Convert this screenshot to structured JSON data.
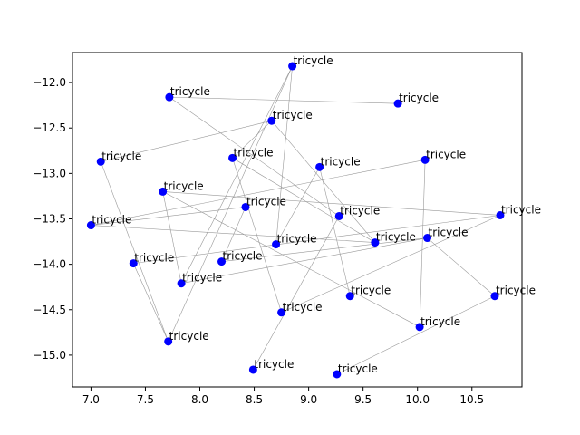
{
  "chart_data": {
    "type": "scatter",
    "title": "",
    "xlabel": "",
    "ylabel": "",
    "xlim": [
      6.83,
      10.96
    ],
    "ylim": [
      -15.35,
      -11.67
    ],
    "xticks": [
      7.0,
      7.5,
      8.0,
      8.5,
      9.0,
      9.5,
      10.0,
      10.5
    ],
    "xtick_labels": [
      "7.0",
      "7.5",
      "8.0",
      "8.5",
      "9.0",
      "9.5",
      "10.0",
      "10.5"
    ],
    "yticks": [
      -12.0,
      -12.5,
      -13.0,
      -13.5,
      -14.0,
      -14.5,
      -15.0
    ],
    "ytick_labels": [
      "−12.0",
      "−12.5",
      "−13.0",
      "−13.5",
      "−14.0",
      "−14.5",
      "−15.0"
    ],
    "grid": false,
    "colors": {
      "point": "#0000ff",
      "edge": "#999999",
      "axis": "#000000"
    },
    "points": [
      {
        "x": 8.85,
        "y": -11.82,
        "label": "tricycle"
      },
      {
        "x": 7.72,
        "y": -12.16,
        "label": "tricycle"
      },
      {
        "x": 9.82,
        "y": -12.23,
        "label": "tricycle"
      },
      {
        "x": 8.66,
        "y": -12.42,
        "label": "tricycle"
      },
      {
        "x": 8.3,
        "y": -12.83,
        "label": "tricycle"
      },
      {
        "x": 7.09,
        "y": -12.87,
        "label": "tricycle"
      },
      {
        "x": 10.07,
        "y": -12.85,
        "label": "tricycle"
      },
      {
        "x": 9.1,
        "y": -12.93,
        "label": "tricycle"
      },
      {
        "x": 7.66,
        "y": -13.2,
        "label": "tricycle"
      },
      {
        "x": 8.42,
        "y": -13.37,
        "label": "tricycle"
      },
      {
        "x": 10.76,
        "y": -13.46,
        "label": "tricycle"
      },
      {
        "x": 9.28,
        "y": -13.47,
        "label": "tricycle"
      },
      {
        "x": 7.0,
        "y": -13.57,
        "label": "tricycle"
      },
      {
        "x": 10.09,
        "y": -13.71,
        "label": "tricycle"
      },
      {
        "x": 9.61,
        "y": -13.76,
        "label": "tricycle"
      },
      {
        "x": 8.7,
        "y": -13.78,
        "label": "tricycle"
      },
      {
        "x": 8.2,
        "y": -13.97,
        "label": "tricycle"
      },
      {
        "x": 7.39,
        "y": -13.99,
        "label": "tricycle"
      },
      {
        "x": 7.83,
        "y": -14.21,
        "label": "tricycle"
      },
      {
        "x": 9.38,
        "y": -14.35,
        "label": "tricycle"
      },
      {
        "x": 10.71,
        "y": -14.35,
        "label": "tricycle"
      },
      {
        "x": 8.75,
        "y": -14.53,
        "label": "tricycle"
      },
      {
        "x": 10.02,
        "y": -14.69,
        "label": "tricycle"
      },
      {
        "x": 7.71,
        "y": -14.85,
        "label": "tricycle"
      },
      {
        "x": 8.49,
        "y": -15.16,
        "label": "tricycle"
      },
      {
        "x": 9.26,
        "y": -15.21,
        "label": "tricycle"
      }
    ],
    "edges": [
      [
        0,
        15
      ],
      [
        0,
        18
      ],
      [
        1,
        2
      ],
      [
        1,
        11
      ],
      [
        3,
        4
      ],
      [
        3,
        5
      ],
      [
        4,
        21
      ],
      [
        4,
        14
      ],
      [
        6,
        12
      ],
      [
        6,
        22
      ],
      [
        7,
        19
      ],
      [
        8,
        10
      ],
      [
        8,
        18
      ],
      [
        8,
        22
      ],
      [
        9,
        16
      ],
      [
        9,
        12
      ],
      [
        11,
        24
      ],
      [
        12,
        14
      ],
      [
        13,
        20
      ],
      [
        13,
        16
      ],
      [
        14,
        3
      ],
      [
        15,
        7
      ],
      [
        17,
        10
      ],
      [
        17,
        23
      ],
      [
        23,
        5
      ],
      [
        23,
        0
      ],
      [
        25,
        20
      ],
      [
        21,
        10
      ],
      [
        18,
        13
      ]
    ]
  }
}
